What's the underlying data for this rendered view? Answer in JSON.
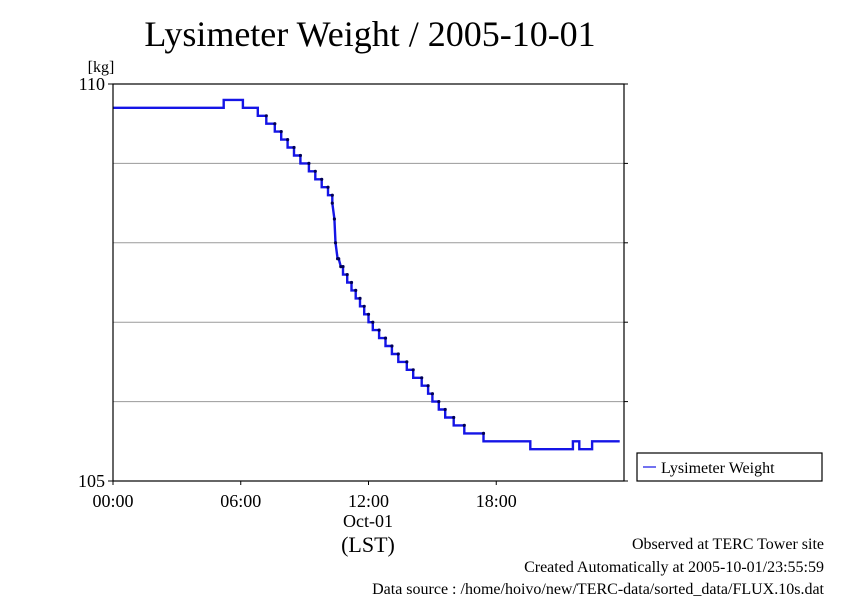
{
  "chart_data": {
    "type": "line",
    "title": "Lysimeter Weight / 2005-10-01",
    "ylabel": "[kg]",
    "xlabel": "(LST)",
    "date_label": "Oct-01",
    "xlim": [
      0,
      24
    ],
    "ylim": [
      105,
      110
    ],
    "x_ticks": [
      {
        "value": 0,
        "label": "00:00"
      },
      {
        "value": 6,
        "label": "06:00"
      },
      {
        "value": 12,
        "label": "12:00"
      },
      {
        "value": 18,
        "label": "18:00"
      }
    ],
    "y_ticks": [
      {
        "value": 110,
        "label": "110"
      },
      {
        "value": 105,
        "label": "105"
      }
    ],
    "y_gridlines": [
      106,
      107,
      108,
      109
    ],
    "grid": "horizontal",
    "legend_position": "right",
    "series": [
      {
        "name": "Lysimeter Weight",
        "color": "#1515e6",
        "points": [
          [
            0.0,
            109.7
          ],
          [
            5.2,
            109.7
          ],
          [
            5.2,
            109.8
          ],
          [
            6.1,
            109.8
          ],
          [
            6.1,
            109.7
          ],
          [
            6.8,
            109.7
          ],
          [
            6.8,
            109.6
          ],
          [
            7.2,
            109.6
          ],
          [
            7.2,
            109.5
          ],
          [
            7.6,
            109.5
          ],
          [
            7.6,
            109.4
          ],
          [
            7.9,
            109.4
          ],
          [
            7.9,
            109.3
          ],
          [
            8.2,
            109.3
          ],
          [
            8.2,
            109.2
          ],
          [
            8.5,
            109.2
          ],
          [
            8.5,
            109.1
          ],
          [
            8.8,
            109.1
          ],
          [
            8.8,
            109.0
          ],
          [
            9.2,
            109.0
          ],
          [
            9.2,
            108.9
          ],
          [
            9.5,
            108.9
          ],
          [
            9.5,
            108.8
          ],
          [
            9.8,
            108.8
          ],
          [
            9.8,
            108.7
          ],
          [
            10.1,
            108.7
          ],
          [
            10.1,
            108.6
          ],
          [
            10.3,
            108.6
          ],
          [
            10.3,
            108.5
          ],
          [
            10.4,
            108.3
          ],
          [
            10.45,
            108.0
          ],
          [
            10.55,
            107.8
          ],
          [
            10.6,
            107.8
          ],
          [
            10.7,
            107.7
          ],
          [
            10.8,
            107.7
          ],
          [
            10.8,
            107.6
          ],
          [
            11.0,
            107.6
          ],
          [
            11.0,
            107.5
          ],
          [
            11.2,
            107.5
          ],
          [
            11.2,
            107.4
          ],
          [
            11.4,
            107.4
          ],
          [
            11.4,
            107.3
          ],
          [
            11.6,
            107.3
          ],
          [
            11.6,
            107.2
          ],
          [
            11.8,
            107.2
          ],
          [
            11.8,
            107.1
          ],
          [
            12.0,
            107.1
          ],
          [
            12.0,
            107.0
          ],
          [
            12.2,
            107.0
          ],
          [
            12.2,
            106.9
          ],
          [
            12.5,
            106.9
          ],
          [
            12.5,
            106.8
          ],
          [
            12.8,
            106.8
          ],
          [
            12.8,
            106.7
          ],
          [
            13.1,
            106.7
          ],
          [
            13.1,
            106.6
          ],
          [
            13.4,
            106.6
          ],
          [
            13.4,
            106.5
          ],
          [
            13.8,
            106.5
          ],
          [
            13.8,
            106.4
          ],
          [
            14.1,
            106.4
          ],
          [
            14.1,
            106.3
          ],
          [
            14.5,
            106.3
          ],
          [
            14.5,
            106.2
          ],
          [
            14.8,
            106.2
          ],
          [
            14.8,
            106.1
          ],
          [
            15.0,
            106.1
          ],
          [
            15.0,
            106.0
          ],
          [
            15.3,
            106.0
          ],
          [
            15.3,
            105.9
          ],
          [
            15.6,
            105.9
          ],
          [
            15.6,
            105.8
          ],
          [
            16.0,
            105.8
          ],
          [
            16.0,
            105.7
          ],
          [
            16.5,
            105.7
          ],
          [
            16.5,
            105.6
          ],
          [
            17.4,
            105.6
          ],
          [
            17.4,
            105.5
          ],
          [
            19.6,
            105.5
          ],
          [
            19.6,
            105.4
          ],
          [
            21.6,
            105.4
          ],
          [
            21.6,
            105.5
          ],
          [
            21.9,
            105.5
          ],
          [
            21.9,
            105.4
          ],
          [
            22.5,
            105.4
          ],
          [
            22.5,
            105.5
          ],
          [
            23.8,
            105.5
          ]
        ]
      }
    ]
  },
  "footer": {
    "line1": "Observed at TERC Tower site",
    "line2": "Created Automatically at 2005-10-01/23:55:59",
    "line3": "Data source : /home/hoivo/new/TERC-data/sorted_data/FLUX.10s.dat"
  }
}
